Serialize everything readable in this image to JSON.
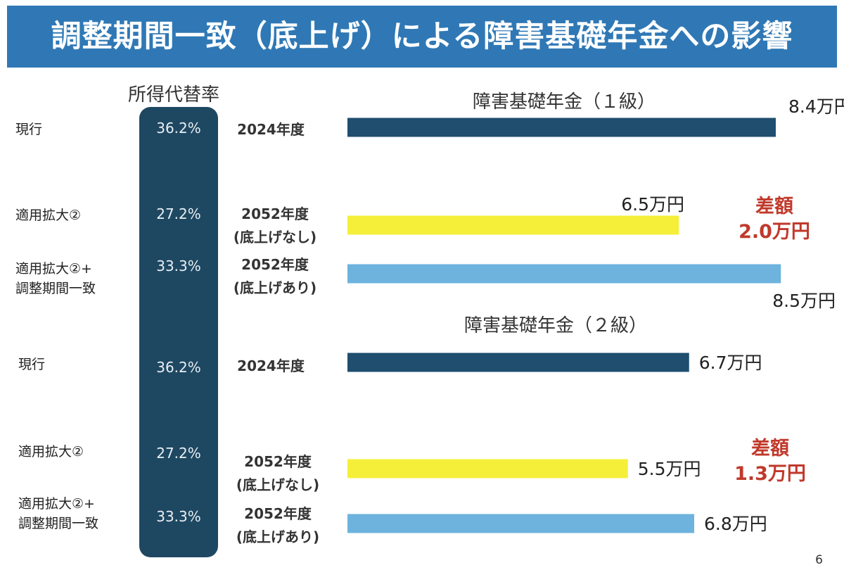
{
  "title": "調整期間一致（底上げ）による障害基礎年金への影響",
  "rate_header": "所得代替率",
  "page_number": "6",
  "chart_data": {
    "type": "bar",
    "unit": "万円",
    "colors": {
      "current": "#1f4e6e",
      "no_raise": "#f5ef3a",
      "with_raise": "#6db3dd"
    },
    "groups": [
      {
        "title": "障害基礎年金（１級）",
        "difference_label": "差額",
        "difference_value": "2.0万円",
        "rows": [
          {
            "label_lines": [
              "現行"
            ],
            "rate": "36.2%",
            "year_lines": [
              "2024年度"
            ],
            "value": 8.4,
            "value_label": "8.4万円",
            "kind": "current"
          },
          {
            "label_lines": [
              "適用拡大②"
            ],
            "rate": "27.2%",
            "year_lines": [
              "2052年度",
              "(底上げなし)"
            ],
            "value": 6.5,
            "value_label": "6.5万円",
            "kind": "no_raise"
          },
          {
            "label_lines": [
              "適用拡大②+",
              "調整期間一致"
            ],
            "rate": "33.3%",
            "year_lines": [
              "2052年度",
              "(底上げあり)"
            ],
            "value": 8.5,
            "value_label": "8.5万円",
            "kind": "with_raise"
          }
        ]
      },
      {
        "title": "障害基礎年金（２級）",
        "difference_label": "差額",
        "difference_value": "1.3万円",
        "rows": [
          {
            "label_lines": [
              "現行"
            ],
            "rate": "36.2%",
            "year_lines": [
              "2024年度"
            ],
            "value": 6.7,
            "value_label": "6.7万円",
            "kind": "current"
          },
          {
            "label_lines": [
              "適用拡大②"
            ],
            "rate": "27.2%",
            "year_lines": [
              "2052年度",
              "(底上げなし)"
            ],
            "value": 5.5,
            "value_label": "5.5万円",
            "kind": "no_raise"
          },
          {
            "label_lines": [
              "適用拡大②+",
              "調整期間一致"
            ],
            "rate": "33.3%",
            "year_lines": [
              "2052年度",
              "(底上げあり)"
            ],
            "value": 6.8,
            "value_label": "6.8万円",
            "kind": "with_raise"
          }
        ]
      }
    ]
  }
}
